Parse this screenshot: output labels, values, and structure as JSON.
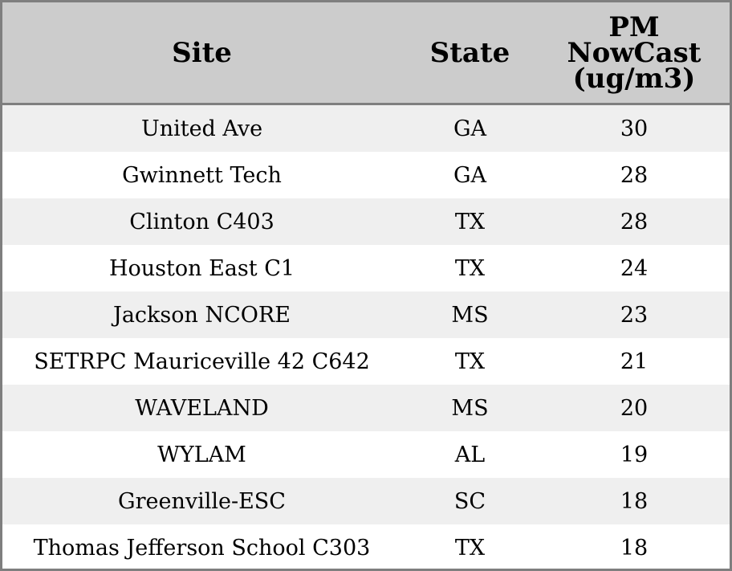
{
  "table": {
    "headers": {
      "site": "Site",
      "state": "State",
      "pm_lines": [
        "PM",
        "NowCast",
        "(ug/m3)"
      ]
    },
    "rows": [
      {
        "site": "United Ave",
        "state": "GA",
        "pm": "30"
      },
      {
        "site": "Gwinnett Tech",
        "state": "GA",
        "pm": "28"
      },
      {
        "site": "Clinton C403",
        "state": "TX",
        "pm": "28"
      },
      {
        "site": "Houston East C1",
        "state": "TX",
        "pm": "24"
      },
      {
        "site": "Jackson NCORE",
        "state": "MS",
        "pm": "23"
      },
      {
        "site": "SETRPC Mauriceville 42 C642",
        "state": "TX",
        "pm": "21"
      },
      {
        "site": "WAVELAND",
        "state": "MS",
        "pm": "20"
      },
      {
        "site": "WYLAM",
        "state": "AL",
        "pm": "19"
      },
      {
        "site": "Greenville-ESC",
        "state": "SC",
        "pm": "18"
      },
      {
        "site": "Thomas Jefferson School C303",
        "state": "TX",
        "pm": "18"
      }
    ]
  },
  "colors": {
    "header_background": "#cccccc",
    "row_stripe": "#efefef",
    "row_plain": "#ffffff",
    "border": "#7f7f7f"
  }
}
